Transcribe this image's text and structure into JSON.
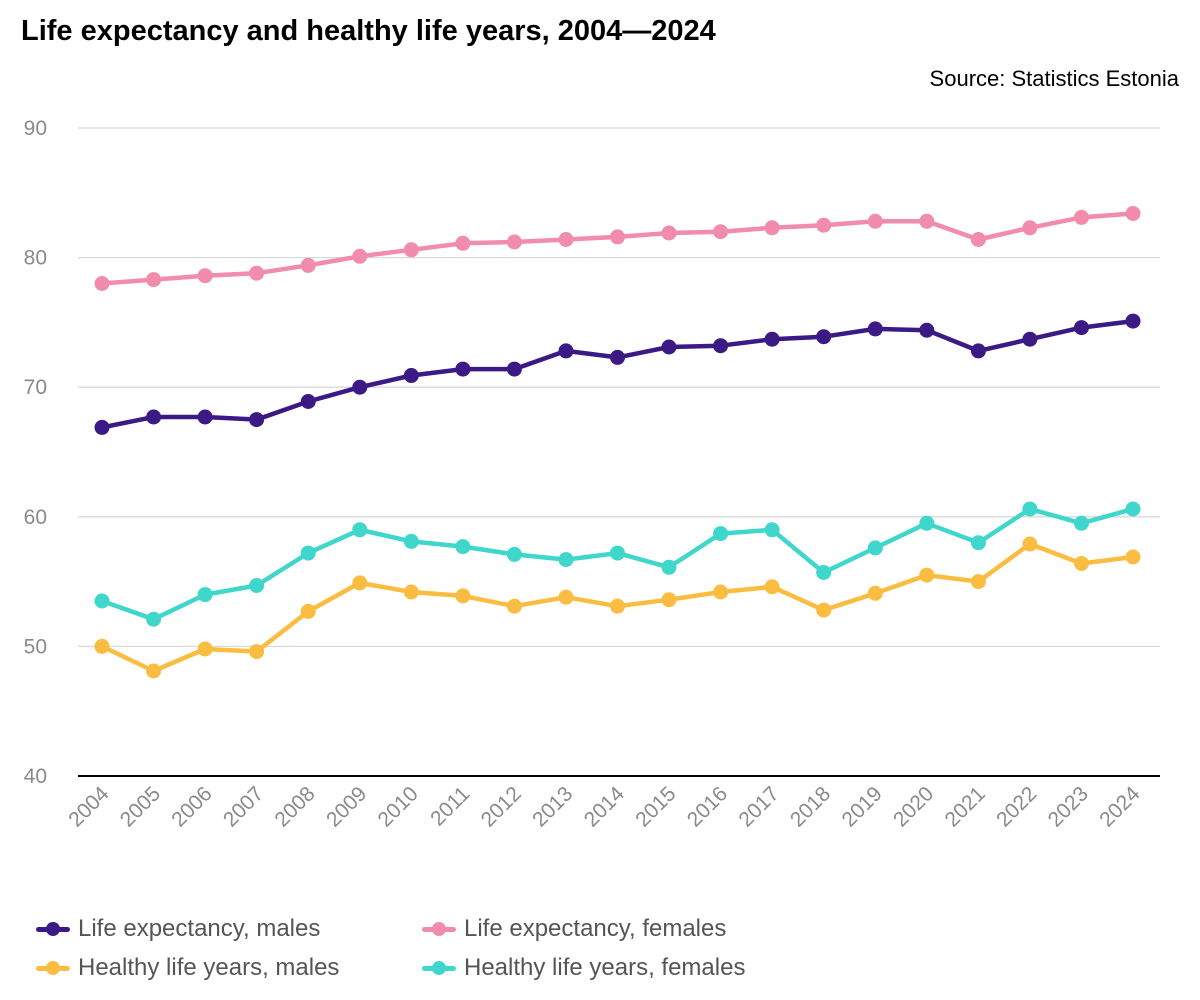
{
  "chart_data": {
    "type": "line",
    "title": "Life expectancy and healthy life years, 2004—2024",
    "source": "Source: Statistics Estonia",
    "x": [
      "2004",
      "2005",
      "2006",
      "2007",
      "2008",
      "2009",
      "2010",
      "2011",
      "2012",
      "2013",
      "2014",
      "2015",
      "2016",
      "2017",
      "2018",
      "2019",
      "2020",
      "2021",
      "2022",
      "2023",
      "2024"
    ],
    "ylim": [
      40,
      90
    ],
    "yticks": [
      40,
      50,
      60,
      70,
      80,
      90
    ],
    "grid": true,
    "legend": "bottom",
    "series": [
      {
        "name": "Life expectancy, males",
        "color": "#3b1a85",
        "values": [
          66.9,
          67.7,
          67.7,
          67.5,
          68.9,
          70.0,
          70.9,
          71.4,
          71.4,
          72.8,
          72.3,
          73.1,
          73.2,
          73.7,
          73.9,
          74.5,
          74.4,
          72.8,
          73.7,
          74.6,
          75.1
        ]
      },
      {
        "name": "Life expectancy, females",
        "color": "#f28cac",
        "values": [
          78.0,
          78.3,
          78.6,
          78.8,
          79.4,
          80.1,
          80.6,
          81.1,
          81.2,
          81.4,
          81.6,
          81.9,
          82.0,
          82.3,
          82.5,
          82.8,
          82.8,
          81.4,
          82.3,
          83.1,
          83.4
        ]
      },
      {
        "name": "Healthy life years, males",
        "color": "#fbbd41",
        "values": [
          50.0,
          48.1,
          49.8,
          49.6,
          52.7,
          54.9,
          54.2,
          53.9,
          53.1,
          53.8,
          53.1,
          53.6,
          54.2,
          54.6,
          52.8,
          54.1,
          55.5,
          55.0,
          57.9,
          56.4,
          56.9
        ]
      },
      {
        "name": "Healthy life years, females",
        "color": "#3fd6cb",
        "values": [
          53.5,
          52.1,
          54.0,
          54.7,
          57.2,
          59.0,
          58.1,
          57.7,
          57.1,
          56.7,
          57.2,
          56.1,
          58.7,
          59.0,
          55.7,
          57.6,
          59.5,
          58.0,
          60.6,
          59.5,
          60.6
        ]
      }
    ]
  }
}
